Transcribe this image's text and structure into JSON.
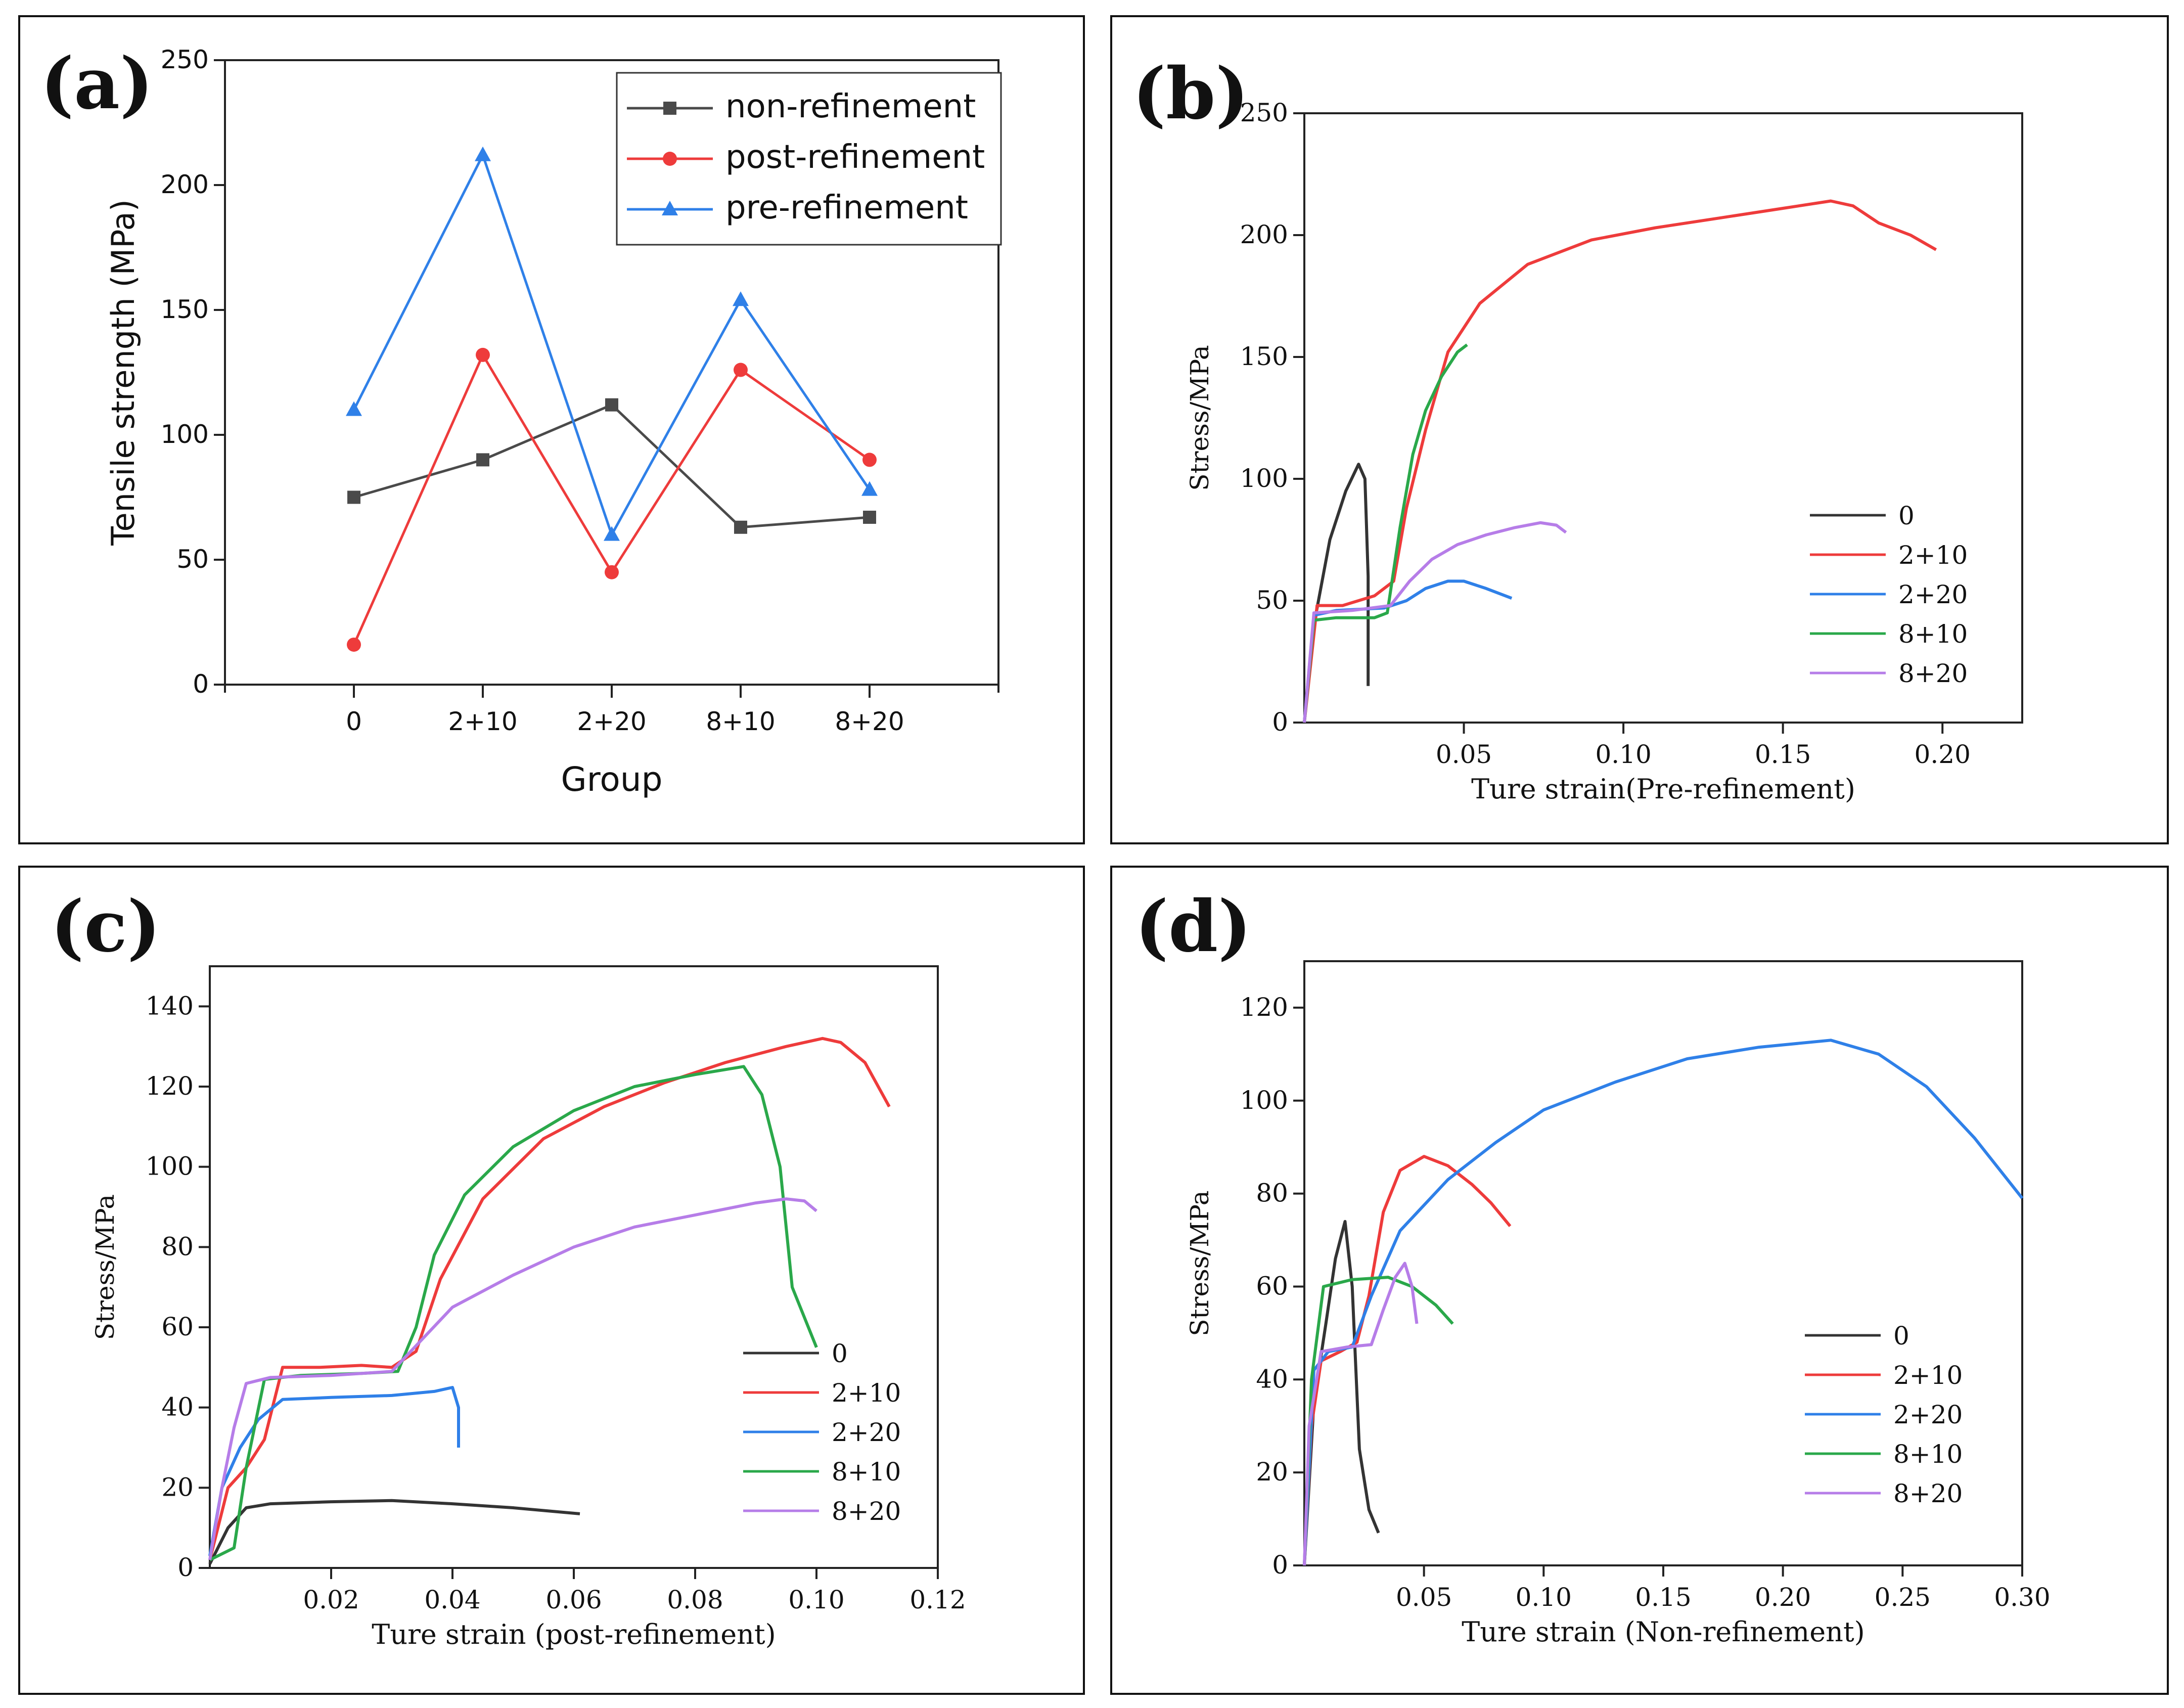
{
  "chart_data": [
    {
      "id": "a",
      "type": "line",
      "panel_label": "(a)",
      "xlabel": "Group",
      "ylabel": "Tensile strength (MPa)",
      "categories": [
        "0",
        "2+10",
        "2+20",
        "8+10",
        "8+20"
      ],
      "ylim": [
        0,
        250
      ],
      "yticks": [
        "0",
        "50",
        "100",
        "150",
        "200",
        "250"
      ],
      "legend_position": "top-right",
      "series": [
        {
          "name": "non-refinement",
          "color": "#4a4a4a",
          "marker": "square",
          "values": [
            75,
            90,
            112,
            63,
            67
          ]
        },
        {
          "name": "post-refinement",
          "color": "#ee3b3b",
          "marker": "circle",
          "values": [
            16,
            132,
            45,
            126,
            90
          ]
        },
        {
          "name": "pre-refinement",
          "color": "#2f80e8",
          "marker": "triangle",
          "values": [
            110,
            212,
            60,
            154,
            78
          ]
        }
      ]
    },
    {
      "id": "b",
      "type": "line",
      "panel_label": "(b)",
      "xlabel": "Ture strain(Pre-refinement)",
      "ylabel": "Stress/MPa",
      "xlim": [
        0,
        0.225
      ],
      "ylim": [
        0,
        250
      ],
      "xticks": [
        "0.05",
        "0.10",
        "0.15",
        "0.20"
      ],
      "yticks": [
        "0",
        "50",
        "100",
        "150",
        "200",
        "250"
      ],
      "legend_position": "lower-right",
      "series": [
        {
          "name": "0",
          "color": "#333333",
          "points": [
            [
              0,
              0
            ],
            [
              0.003,
              40
            ],
            [
              0.008,
              75
            ],
            [
              0.013,
              95
            ],
            [
              0.017,
              106
            ],
            [
              0.019,
              100
            ],
            [
              0.02,
              60
            ],
            [
              0.02,
              15
            ]
          ]
        },
        {
          "name": "2+10",
          "color": "#ee3b3b",
          "points": [
            [
              0,
              0
            ],
            [
              0.004,
              48
            ],
            [
              0.012,
              48
            ],
            [
              0.022,
              52
            ],
            [
              0.028,
              58
            ],
            [
              0.032,
              88
            ],
            [
              0.038,
              120
            ],
            [
              0.045,
              152
            ],
            [
              0.055,
              172
            ],
            [
              0.07,
              188
            ],
            [
              0.09,
              198
            ],
            [
              0.11,
              203
            ],
            [
              0.13,
              207
            ],
            [
              0.15,
              211
            ],
            [
              0.165,
              214
            ],
            [
              0.172,
              212
            ],
            [
              0.18,
              205
            ],
            [
              0.19,
              200
            ],
            [
              0.198,
              194
            ]
          ]
        },
        {
          "name": "2+20",
          "color": "#2f80e8",
          "points": [
            [
              0,
              0
            ],
            [
              0.003,
              44
            ],
            [
              0.01,
              46
            ],
            [
              0.025,
              47
            ],
            [
              0.032,
              50
            ],
            [
              0.038,
              55
            ],
            [
              0.045,
              58
            ],
            [
              0.05,
              58
            ],
            [
              0.057,
              55
            ],
            [
              0.065,
              51
            ]
          ]
        },
        {
          "name": "8+10",
          "color": "#2aa84a",
          "points": [
            [
              0,
              0
            ],
            [
              0.003,
              42
            ],
            [
              0.01,
              43
            ],
            [
              0.022,
              43
            ],
            [
              0.026,
              45
            ],
            [
              0.03,
              80
            ],
            [
              0.034,
              110
            ],
            [
              0.038,
              128
            ],
            [
              0.043,
              142
            ],
            [
              0.048,
              152
            ],
            [
              0.051,
              155
            ]
          ]
        },
        {
          "name": "8+20",
          "color": "#b67de8",
          "points": [
            [
              0,
              0
            ],
            [
              0.003,
              45
            ],
            [
              0.015,
              46
            ],
            [
              0.027,
              48
            ],
            [
              0.033,
              58
            ],
            [
              0.04,
              67
            ],
            [
              0.048,
              73
            ],
            [
              0.057,
              77
            ],
            [
              0.066,
              80
            ],
            [
              0.074,
              82
            ],
            [
              0.079,
              81
            ],
            [
              0.082,
              78
            ]
          ]
        }
      ]
    },
    {
      "id": "c",
      "type": "line",
      "panel_label": "(c)",
      "xlabel": "Ture strain (post-refinement)",
      "ylabel": "Stress/MPa",
      "xlim": [
        0,
        0.12
      ],
      "ylim": [
        0,
        150
      ],
      "xticks": [
        "0.02",
        "0.04",
        "0.06",
        "0.08",
        "0.10",
        "0.12"
      ],
      "yticks": [
        "0",
        "20",
        "40",
        "60",
        "80",
        "100",
        "120",
        "140"
      ],
      "legend_position": "lower-right",
      "series": [
        {
          "name": "0",
          "color": "#333333",
          "points": [
            [
              0,
              1
            ],
            [
              0.003,
              10
            ],
            [
              0.006,
              15
            ],
            [
              0.01,
              16
            ],
            [
              0.02,
              16.5
            ],
            [
              0.03,
              16.8
            ],
            [
              0.04,
              16
            ],
            [
              0.05,
              15
            ],
            [
              0.061,
              13.5
            ]
          ]
        },
        {
          "name": "2+10",
          "color": "#ee3b3b",
          "points": [
            [
              0,
              2
            ],
            [
              0.003,
              20
            ],
            [
              0.006,
              25
            ],
            [
              0.009,
              32
            ],
            [
              0.012,
              50
            ],
            [
              0.018,
              50
            ],
            [
              0.025,
              50.5
            ],
            [
              0.03,
              50
            ],
            [
              0.034,
              54
            ],
            [
              0.038,
              72
            ],
            [
              0.045,
              92
            ],
            [
              0.055,
              107
            ],
            [
              0.065,
              115
            ],
            [
              0.075,
              121
            ],
            [
              0.085,
              126
            ],
            [
              0.095,
              130
            ],
            [
              0.101,
              132
            ],
            [
              0.104,
              131
            ],
            [
              0.108,
              126
            ],
            [
              0.112,
              115
            ]
          ]
        },
        {
          "name": "2+20",
          "color": "#2f80e8",
          "points": [
            [
              0,
              3
            ],
            [
              0.002,
              20
            ],
            [
              0.005,
              30
            ],
            [
              0.008,
              37
            ],
            [
              0.012,
              42
            ],
            [
              0.02,
              42.5
            ],
            [
              0.03,
              43
            ],
            [
              0.037,
              44
            ],
            [
              0.04,
              45
            ],
            [
              0.041,
              40
            ],
            [
              0.041,
              30
            ]
          ]
        },
        {
          "name": "8+10",
          "color": "#2aa84a",
          "points": [
            [
              0,
              2
            ],
            [
              0.004,
              5
            ],
            [
              0.006,
              25
            ],
            [
              0.009,
              47
            ],
            [
              0.015,
              48
            ],
            [
              0.025,
              48.5
            ],
            [
              0.031,
              49
            ],
            [
              0.034,
              60
            ],
            [
              0.037,
              78
            ],
            [
              0.042,
              93
            ],
            [
              0.05,
              105
            ],
            [
              0.06,
              114
            ],
            [
              0.07,
              120
            ],
            [
              0.08,
              123
            ],
            [
              0.088,
              125
            ],
            [
              0.091,
              118
            ],
            [
              0.094,
              100
            ],
            [
              0.096,
              70
            ],
            [
              0.1,
              55
            ]
          ]
        },
        {
          "name": "8+20",
          "color": "#b67de8",
          "points": [
            [
              0,
              2
            ],
            [
              0.002,
              20
            ],
            [
              0.004,
              35
            ],
            [
              0.006,
              46
            ],
            [
              0.01,
              47.5
            ],
            [
              0.02,
              48
            ],
            [
              0.03,
              49
            ],
            [
              0.035,
              57
            ],
            [
              0.04,
              65
            ],
            [
              0.05,
              73
            ],
            [
              0.06,
              80
            ],
            [
              0.07,
              85
            ],
            [
              0.08,
              88
            ],
            [
              0.09,
              91
            ],
            [
              0.095,
              92
            ],
            [
              0.098,
              91.5
            ],
            [
              0.1,
              89
            ]
          ]
        }
      ]
    },
    {
      "id": "d",
      "type": "line",
      "panel_label": "(d)",
      "xlabel": "Ture strain (Non-refinement)",
      "ylabel": "Stress/MPa",
      "xlim": [
        0,
        0.3
      ],
      "ylim": [
        0,
        130
      ],
      "xticks": [
        "0.05",
        "0.10",
        "0.15",
        "0.20",
        "0.25",
        "0.30"
      ],
      "yticks": [
        "0",
        "20",
        "40",
        "60",
        "80",
        "100",
        "120"
      ],
      "legend_position": "lower-right",
      "series": [
        {
          "name": "0",
          "color": "#333333",
          "points": [
            [
              0,
              0
            ],
            [
              0.004,
              35
            ],
            [
              0.009,
              52
            ],
            [
              0.013,
              66
            ],
            [
              0.017,
              74
            ],
            [
              0.02,
              60
            ],
            [
              0.023,
              25
            ],
            [
              0.027,
              12
            ],
            [
              0.031,
              7
            ]
          ]
        },
        {
          "name": "2+10",
          "color": "#ee3b3b",
          "points": [
            [
              0,
              0
            ],
            [
              0.003,
              30
            ],
            [
              0.007,
              44
            ],
            [
              0.015,
              46
            ],
            [
              0.022,
              48
            ],
            [
              0.027,
              58
            ],
            [
              0.033,
              76
            ],
            [
              0.04,
              85
            ],
            [
              0.05,
              88
            ],
            [
              0.06,
              86
            ],
            [
              0.07,
              82
            ],
            [
              0.078,
              78
            ],
            [
              0.086,
              73
            ]
          ]
        },
        {
          "name": "2+20",
          "color": "#2f80e8",
          "points": [
            [
              0,
              0
            ],
            [
              0.004,
              42
            ],
            [
              0.01,
              46
            ],
            [
              0.02,
              47
            ],
            [
              0.028,
              58
            ],
            [
              0.04,
              72
            ],
            [
              0.06,
              83
            ],
            [
              0.08,
              91
            ],
            [
              0.1,
              98
            ],
            [
              0.13,
              104
            ],
            [
              0.16,
              109
            ],
            [
              0.19,
              111.5
            ],
            [
              0.22,
              113
            ],
            [
              0.24,
              110
            ],
            [
              0.26,
              103
            ],
            [
              0.28,
              92
            ],
            [
              0.3,
              79
            ]
          ]
        },
        {
          "name": "8+10",
          "color": "#2aa84a",
          "points": [
            [
              0,
              0
            ],
            [
              0.003,
              40
            ],
            [
              0.008,
              60
            ],
            [
              0.02,
              61.5
            ],
            [
              0.035,
              62
            ],
            [
              0.045,
              60
            ],
            [
              0.055,
              56
            ],
            [
              0.062,
              52
            ]
          ]
        },
        {
          "name": "8+20",
          "color": "#b67de8",
          "points": [
            [
              0,
              0
            ],
            [
              0.002,
              30
            ],
            [
              0.007,
              46
            ],
            [
              0.018,
              47
            ],
            [
              0.028,
              47.5
            ],
            [
              0.033,
              55
            ],
            [
              0.038,
              62
            ],
            [
              0.042,
              65
            ],
            [
              0.045,
              60
            ],
            [
              0.047,
              52
            ]
          ]
        }
      ]
    }
  ]
}
